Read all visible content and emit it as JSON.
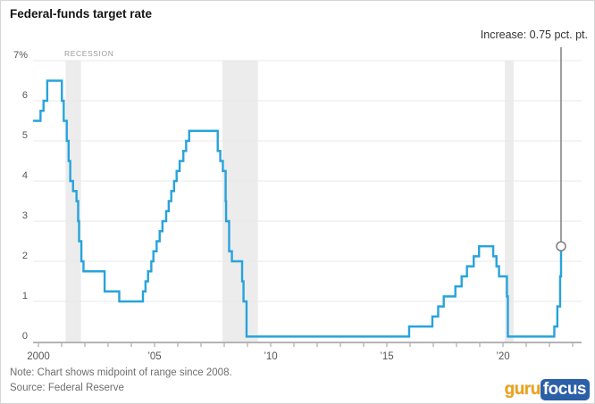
{
  "title": "Federal-funds target rate",
  "recession_label": "RECESSION",
  "note": "Note: Chart shows midpoint of range since 2008.",
  "source": "Source: Federal Reserve",
  "logo": {
    "guru": "guru",
    "focus": "focus"
  },
  "colors": {
    "line": "#27a3dc",
    "recession_band": "#ececec",
    "grid": "#e9e9e9",
    "axis": "#9b9b9b",
    "annotation": "#7d7d7d",
    "title_text": "#141414",
    "label_text": "#555555",
    "muted_text": "#6e6e6e",
    "recession_text": "#9a9a9a",
    "logo_gold": "#f2a20d",
    "logo_blue": "#2b5fa7"
  },
  "chart_data": {
    "type": "line",
    "title": "Federal-funds target rate",
    "xlabel": "",
    "ylabel": "percent",
    "step": true,
    "grid": true,
    "x_range": [
      1999.77,
      2023.3
    ],
    "y_range": [
      0,
      7
    ],
    "y_ticks": [
      {
        "v": 0,
        "label": "0"
      },
      {
        "v": 1,
        "label": "1"
      },
      {
        "v": 2,
        "label": "2"
      },
      {
        "v": 3,
        "label": "3"
      },
      {
        "v": 4,
        "label": "4"
      },
      {
        "v": 5,
        "label": "5"
      },
      {
        "v": 6,
        "label": "6"
      },
      {
        "v": 7,
        "label": "7%"
      }
    ],
    "x_tick_years": [
      2000,
      2001,
      2002,
      2003,
      2004,
      2005,
      2006,
      2007,
      2008,
      2009,
      2010,
      2011,
      2012,
      2013,
      2014,
      2015,
      2016,
      2017,
      2018,
      2019,
      2020,
      2021,
      2022,
      2023
    ],
    "x_tick_labels": [
      {
        "year": 2000,
        "label": "2000"
      },
      {
        "year": 2005,
        "label": "’05"
      },
      {
        "year": 2010,
        "label": "’10"
      },
      {
        "year": 2015,
        "label": "’15"
      },
      {
        "year": 2020,
        "label": "’20"
      }
    ],
    "recessions": [
      {
        "start": 2001.17,
        "end": 2001.83
      },
      {
        "start": 2007.92,
        "end": 2009.45
      },
      {
        "start": 2020.08,
        "end": 2020.46
      }
    ],
    "series": [
      {
        "name": "Federal-funds target rate",
        "points": [
          [
            1999.77,
            5.5
          ],
          [
            2000.09,
            5.75
          ],
          [
            2000.22,
            6.0
          ],
          [
            2000.38,
            6.5
          ],
          [
            2001.01,
            6.0
          ],
          [
            2001.09,
            5.5
          ],
          [
            2001.22,
            5.0
          ],
          [
            2001.3,
            4.5
          ],
          [
            2001.37,
            4.0
          ],
          [
            2001.49,
            3.75
          ],
          [
            2001.64,
            3.5
          ],
          [
            2001.71,
            3.0
          ],
          [
            2001.75,
            2.5
          ],
          [
            2001.85,
            2.0
          ],
          [
            2001.94,
            1.75
          ],
          [
            2002.85,
            1.25
          ],
          [
            2003.48,
            1.0
          ],
          [
            2004.5,
            1.25
          ],
          [
            2004.61,
            1.5
          ],
          [
            2004.72,
            1.75
          ],
          [
            2004.86,
            2.0
          ],
          [
            2004.95,
            2.25
          ],
          [
            2005.09,
            2.5
          ],
          [
            2005.22,
            2.75
          ],
          [
            2005.34,
            3.0
          ],
          [
            2005.5,
            3.25
          ],
          [
            2005.61,
            3.5
          ],
          [
            2005.72,
            3.75
          ],
          [
            2005.84,
            4.0
          ],
          [
            2005.95,
            4.25
          ],
          [
            2006.08,
            4.5
          ],
          [
            2006.24,
            4.75
          ],
          [
            2006.36,
            5.0
          ],
          [
            2006.49,
            5.25
          ],
          [
            2007.72,
            4.75
          ],
          [
            2007.83,
            4.5
          ],
          [
            2007.94,
            4.25
          ],
          [
            2008.06,
            3.5
          ],
          [
            2008.08,
            3.0
          ],
          [
            2008.21,
            2.25
          ],
          [
            2008.33,
            2.0
          ],
          [
            2008.77,
            1.5
          ],
          [
            2008.83,
            1.0
          ],
          [
            2008.96,
            0.125
          ],
          [
            2015.96,
            0.375
          ],
          [
            2016.96,
            0.625
          ],
          [
            2017.21,
            0.875
          ],
          [
            2017.45,
            1.125
          ],
          [
            2017.95,
            1.375
          ],
          [
            2018.22,
            1.625
          ],
          [
            2018.45,
            1.875
          ],
          [
            2018.74,
            2.125
          ],
          [
            2018.97,
            2.375
          ],
          [
            2019.58,
            2.125
          ],
          [
            2019.72,
            1.875
          ],
          [
            2019.83,
            1.625
          ],
          [
            2020.17,
            1.125
          ],
          [
            2020.21,
            0.125
          ],
          [
            2022.21,
            0.375
          ],
          [
            2022.34,
            0.875
          ],
          [
            2022.46,
            1.625
          ],
          [
            2022.5,
            2.375
          ]
        ]
      }
    ],
    "annotation": {
      "label": "Increase: 0.75 pct. pt.",
      "x": 2022.5,
      "y": 2.375
    }
  }
}
